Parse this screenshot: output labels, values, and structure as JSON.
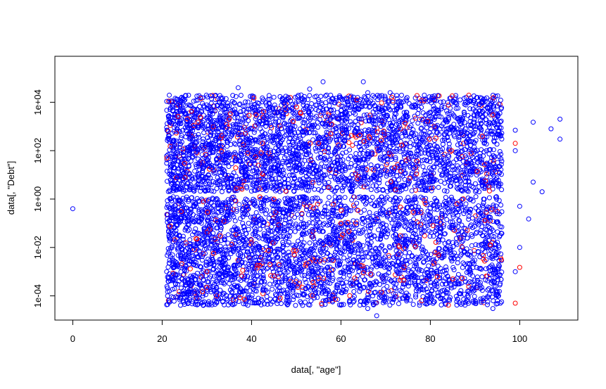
{
  "chart_data": {
    "type": "scatter",
    "title": "",
    "xlabel": "data[, \"age\"]",
    "ylabel": "data[, \"Debt\"]",
    "xlim": [
      -4,
      113
    ],
    "ylim_log10": [
      -5.0,
      5.9
    ],
    "log_y": true,
    "grid": false,
    "legend": "none",
    "marker": "open-circle",
    "x_ticks": [
      0,
      20,
      40,
      60,
      80,
      100
    ],
    "x_tick_labels": [
      "0",
      "20",
      "40",
      "60",
      "80",
      "100"
    ],
    "y_ticks": [
      0.0001,
      0.01,
      1,
      100,
      10000
    ],
    "y_tick_labels": [
      "1e-04",
      "1e-02",
      "1e+00",
      "1e+02",
      "1e+04"
    ],
    "series": [
      {
        "color": "#0000ff",
        "dense_region": {
          "x_range": [
            21,
            96
          ],
          "y_range": [
            4e-05,
            20000
          ]
        },
        "points": [
          [
            0,
            0.4
          ],
          [
            37,
            40000
          ],
          [
            56,
            70000
          ],
          [
            65,
            70000
          ],
          [
            53,
            35000
          ],
          [
            71,
            25000
          ],
          [
            66,
            25000
          ],
          [
            89,
            15000
          ],
          [
            107,
            800
          ],
          [
            109,
            2000
          ],
          [
            109,
            300
          ],
          [
            103,
            1500
          ],
          [
            99,
            700
          ],
          [
            99,
            100
          ],
          [
            103,
            5
          ],
          [
            105,
            2
          ],
          [
            96,
            0.3
          ],
          [
            102,
            0.15
          ],
          [
            100,
            0.5
          ],
          [
            100,
            0.01
          ],
          [
            99,
            0.001
          ],
          [
            94,
            3e-05
          ],
          [
            66,
            3e-05
          ],
          [
            68,
            1.5e-05
          ]
        ]
      },
      {
        "color": "#ff0000",
        "points": [
          [
            94,
            3000
          ],
          [
            99,
            200
          ],
          [
            99,
            5e-05
          ],
          [
            100,
            0.0015
          ],
          [
            41,
            3000
          ],
          [
            35,
            2000
          ],
          [
            28,
            1500
          ],
          [
            51,
            3500
          ],
          [
            25,
            30
          ],
          [
            45,
            1
          ],
          [
            60,
            0.1
          ],
          [
            85,
            0.0005
          ],
          [
            33,
            0.03
          ],
          [
            55,
            200
          ],
          [
            72,
            20
          ],
          [
            30,
            0.001
          ]
        ]
      }
    ]
  }
}
